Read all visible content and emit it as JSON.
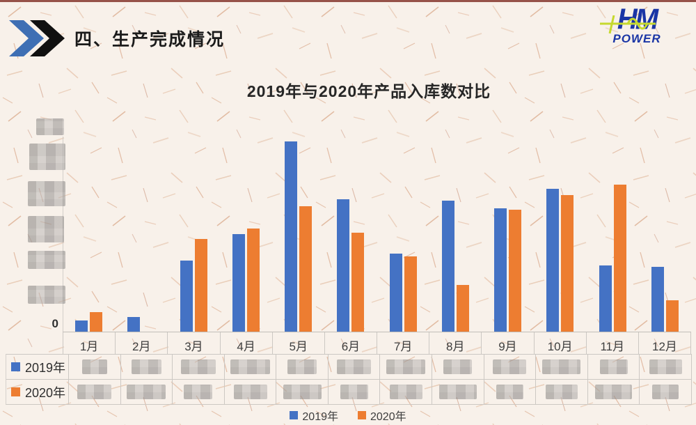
{
  "slide": {
    "section_title": "四、生产完成情况"
  },
  "logo": {
    "line1": "HM",
    "line2": "POWER",
    "color": "#1a35a5",
    "accent_color": "#c6d92e"
  },
  "chart": {
    "title": "2019年与2020年产品入库数对比",
    "y_axis": {
      "zero_label": "0",
      "tick_labels_redacted": true,
      "redacted_tick_count": 6
    }
  },
  "chart_data": {
    "type": "bar",
    "title": "2019年与2020年产品入库数对比",
    "categories": [
      "1月",
      "2月",
      "3月",
      "4月",
      "5月",
      "6月",
      "7月",
      "8月",
      "9月",
      "10月",
      "11月",
      "12月"
    ],
    "series": [
      {
        "name": "2019年",
        "color": "#4472c4",
        "values": [
          16,
          21,
          102,
          140,
          273,
          190,
          112,
          188,
          177,
          205,
          95,
          93
        ]
      },
      {
        "name": "2020年",
        "color": "#ed7d31",
        "values": [
          28,
          0,
          133,
          148,
          180,
          142,
          108,
          67,
          175,
          196,
          211,
          45
        ]
      }
    ],
    "legend_position": "bottom",
    "grid": false,
    "note": "Y-axis tick labels and the data table values are pixelated (redacted) in the source image; series values are relative estimates of bar heights in pixels."
  },
  "legend": {
    "items": [
      {
        "label": "2019年",
        "color": "#4472c4"
      },
      {
        "label": "2020年",
        "color": "#ed7d31"
      }
    ]
  },
  "table": {
    "row_headers": [
      "2019年",
      "2020年"
    ],
    "columns": 12,
    "values_redacted": true
  }
}
